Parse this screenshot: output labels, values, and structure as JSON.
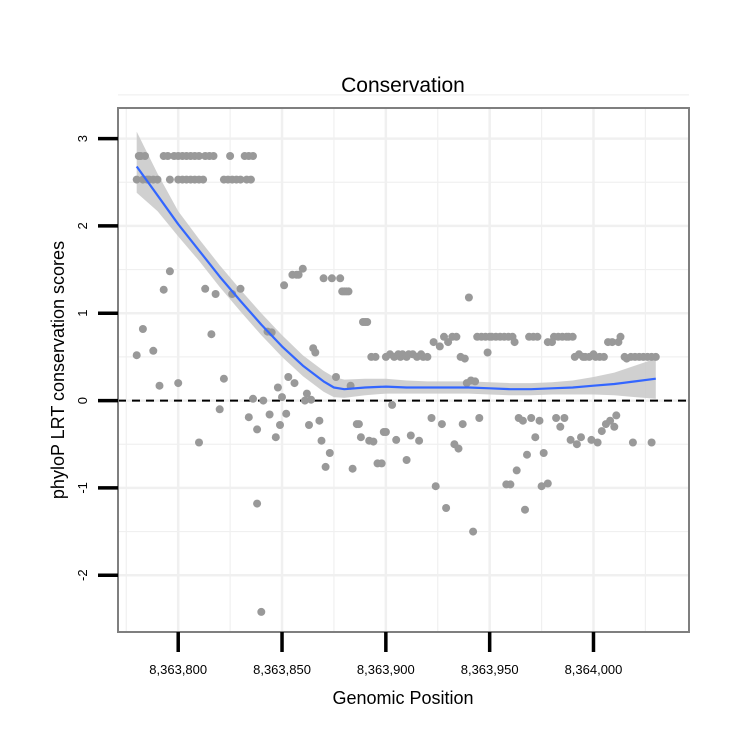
{
  "chart_data": {
    "type": "scatter",
    "title": "Conservation",
    "xlabel": "Genomic Position",
    "ylabel": "phyloP LRT conservation scores",
    "xlim": [
      8363771,
      8364046
    ],
    "ylim": [
      -2.65,
      3.35
    ],
    "x_ticks": [
      {
        "value": 8363800,
        "label": "8,363,800"
      },
      {
        "value": 8363850,
        "label": "8,363,850"
      },
      {
        "value": 8363900,
        "label": "8,363,900"
      },
      {
        "value": 8363950,
        "label": "8,363,950"
      },
      {
        "value": 8364000,
        "label": "8,364,000"
      }
    ],
    "y_ticks": [
      {
        "value": 3,
        "label": "3"
      },
      {
        "value": 2,
        "label": "2"
      },
      {
        "value": 1,
        "label": "1"
      },
      {
        "value": 0,
        "label": "0"
      },
      {
        "value": -1,
        "label": "-1"
      },
      {
        "value": -2,
        "label": "-2"
      }
    ],
    "reference_line": {
      "y": 0,
      "style": "dashed"
    },
    "grid": true,
    "colors": {
      "points": "#999999",
      "smooth": "#3366ff",
      "ribbon": "#c8c8c8",
      "panel_border": "#7f7f7f",
      "grid": "#f0f0f0"
    },
    "smooth": {
      "x": [
        8363780,
        8363790,
        8363800,
        8363810,
        8363820,
        8363830,
        8363840,
        8363850,
        8363860,
        8363870,
        8363875,
        8363880,
        8363890,
        8363900,
        8363910,
        8363920,
        8363930,
        8363940,
        8363950,
        8363960,
        8363970,
        8363980,
        8363990,
        8364000,
        8364010,
        8364020,
        8364030
      ],
      "y": [
        2.68,
        2.35,
        2.02,
        1.72,
        1.42,
        1.14,
        0.87,
        0.62,
        0.4,
        0.22,
        0.15,
        0.13,
        0.15,
        0.16,
        0.15,
        0.15,
        0.15,
        0.15,
        0.14,
        0.13,
        0.13,
        0.14,
        0.15,
        0.17,
        0.19,
        0.22,
        0.25
      ],
      "lower": [
        2.38,
        2.17,
        1.88,
        1.6,
        1.3,
        1.02,
        0.75,
        0.5,
        0.28,
        0.1,
        0.04,
        0.03,
        0.06,
        0.08,
        0.08,
        0.08,
        0.08,
        0.08,
        0.07,
        0.06,
        0.06,
        0.07,
        0.07,
        0.07,
        0.06,
        0.04,
        0.02
      ],
      "upper": [
        3.08,
        2.6,
        2.17,
        1.85,
        1.55,
        1.27,
        1.0,
        0.75,
        0.52,
        0.34,
        0.27,
        0.24,
        0.25,
        0.25,
        0.23,
        0.22,
        0.22,
        0.22,
        0.21,
        0.2,
        0.2,
        0.21,
        0.23,
        0.27,
        0.32,
        0.4,
        0.48
      ]
    },
    "points": [
      [
        8363780,
        2.53
      ],
      [
        8363781,
        2.8
      ],
      [
        8363782,
        2.8
      ],
      [
        8363783,
        2.53
      ],
      [
        8363784,
        2.8
      ],
      [
        8363785,
        2.53
      ],
      [
        8363786,
        2.53
      ],
      [
        8363788,
        2.53
      ],
      [
        8363790,
        2.53
      ],
      [
        8363793,
        2.8
      ],
      [
        8363795,
        2.8
      ],
      [
        8363796,
        2.53
      ],
      [
        8363798,
        2.8
      ],
      [
        8363800,
        2.8
      ],
      [
        8363800,
        2.53
      ],
      [
        8363802,
        2.8
      ],
      [
        8363802,
        2.53
      ],
      [
        8363804,
        2.8
      ],
      [
        8363804,
        2.53
      ],
      [
        8363806,
        2.8
      ],
      [
        8363806,
        2.53
      ],
      [
        8363808,
        2.8
      ],
      [
        8363808,
        2.53
      ],
      [
        8363810,
        2.8
      ],
      [
        8363810,
        2.53
      ],
      [
        8363812,
        2.53
      ],
      [
        8363813,
        2.8
      ],
      [
        8363815,
        2.8
      ],
      [
        8363817,
        2.8
      ],
      [
        8363822,
        2.53
      ],
      [
        8363824,
        2.53
      ],
      [
        8363825,
        2.8
      ],
      [
        8363826,
        2.53
      ],
      [
        8363828,
        2.53
      ],
      [
        8363830,
        2.53
      ],
      [
        8363832,
        2.8
      ],
      [
        8363833,
        2.53
      ],
      [
        8363834,
        2.8
      ],
      [
        8363835,
        2.53
      ],
      [
        8363836,
        2.8
      ],
      [
        8363780,
        0.52
      ],
      [
        8363783,
        0.82
      ],
      [
        8363788,
        0.57
      ],
      [
        8363791,
        0.17
      ],
      [
        8363793,
        1.27
      ],
      [
        8363796,
        1.48
      ],
      [
        8363800,
        0.2
      ],
      [
        8363810,
        -0.48
      ],
      [
        8363813,
        1.28
      ],
      [
        8363816,
        0.76
      ],
      [
        8363818,
        1.22
      ],
      [
        8363820,
        -0.1
      ],
      [
        8363822,
        0.25
      ],
      [
        8363826,
        1.22
      ],
      [
        8363830,
        1.28
      ],
      [
        8363834,
        -0.19
      ],
      [
        8363836,
        0.02
      ],
      [
        8363838,
        -0.33
      ],
      [
        8363838,
        -1.18
      ],
      [
        8363840,
        -2.42
      ],
      [
        8363841,
        0.0
      ],
      [
        8363843,
        0.79
      ],
      [
        8363844,
        -0.16
      ],
      [
        8363845,
        0.78
      ],
      [
        8363847,
        -0.42
      ],
      [
        8363848,
        0.15
      ],
      [
        8363849,
        -0.28
      ],
      [
        8363850,
        0.04
      ],
      [
        8363851,
        1.32
      ],
      [
        8363852,
        -0.15
      ],
      [
        8363853,
        0.27
      ],
      [
        8363855,
        1.44
      ],
      [
        8363856,
        0.2
      ],
      [
        8363857,
        1.44
      ],
      [
        8363858,
        1.44
      ],
      [
        8363860,
        1.51
      ],
      [
        8363861,
        0.0
      ],
      [
        8363862,
        0.08
      ],
      [
        8363863,
        -0.28
      ],
      [
        8363864,
        0.01
      ],
      [
        8363865,
        0.6
      ],
      [
        8363866,
        0.55
      ],
      [
        8363868,
        -0.23
      ],
      [
        8363869,
        -0.46
      ],
      [
        8363870,
        1.4
      ],
      [
        8363871,
        -0.76
      ],
      [
        8363873,
        -0.6
      ],
      [
        8363874,
        1.4
      ],
      [
        8363876,
        0.27
      ],
      [
        8363878,
        1.4
      ],
      [
        8363879,
        1.25
      ],
      [
        8363880,
        1.25
      ],
      [
        8363881,
        1.25
      ],
      [
        8363882,
        1.25
      ],
      [
        8363883,
        0.17
      ],
      [
        8363884,
        -0.78
      ],
      [
        8363886,
        -0.27
      ],
      [
        8363887,
        -0.27
      ],
      [
        8363888,
        -0.42
      ],
      [
        8363889,
        0.9
      ],
      [
        8363890,
        0.9
      ],
      [
        8363891,
        0.9
      ],
      [
        8363892,
        -0.46
      ],
      [
        8363893,
        0.5
      ],
      [
        8363894,
        -0.47
      ],
      [
        8363895,
        0.5
      ],
      [
        8363896,
        -0.72
      ],
      [
        8363898,
        -0.72
      ],
      [
        8363899,
        -0.36
      ],
      [
        8363900,
        0.5
      ],
      [
        8363900,
        -0.36
      ],
      [
        8363902,
        0.53
      ],
      [
        8363903,
        -0.05
      ],
      [
        8363904,
        0.5
      ],
      [
        8363905,
        -0.45
      ],
      [
        8363906,
        0.53
      ],
      [
        8363907,
        0.5
      ],
      [
        8363908,
        0.53
      ],
      [
        8363910,
        0.5
      ],
      [
        8363910,
        -0.68
      ],
      [
        8363911,
        0.53
      ],
      [
        8363912,
        -0.4
      ],
      [
        8363913,
        0.53
      ],
      [
        8363915,
        0.5
      ],
      [
        8363916,
        -0.46
      ],
      [
        8363917,
        0.53
      ],
      [
        8363918,
        0.5
      ],
      [
        8363920,
        0.5
      ],
      [
        8363922,
        -0.2
      ],
      [
        8363923,
        0.67
      ],
      [
        8363924,
        -0.98
      ],
      [
        8363926,
        0.62
      ],
      [
        8363927,
        -0.27
      ],
      [
        8363928,
        0.73
      ],
      [
        8363929,
        -1.23
      ],
      [
        8363930,
        0.67
      ],
      [
        8363932,
        0.73
      ],
      [
        8363933,
        -0.5
      ],
      [
        8363934,
        0.73
      ],
      [
        8363935,
        -0.55
      ],
      [
        8363936,
        0.5
      ],
      [
        8363937,
        -0.27
      ],
      [
        8363938,
        0.48
      ],
      [
        8363939,
        0.2
      ],
      [
        8363940,
        1.18
      ],
      [
        8363941,
        0.23
      ],
      [
        8363942,
        -1.5
      ],
      [
        8363943,
        0.22
      ],
      [
        8363944,
        0.73
      ],
      [
        8363945,
        -0.2
      ],
      [
        8363946,
        0.73
      ],
      [
        8363948,
        0.73
      ],
      [
        8363949,
        0.55
      ],
      [
        8363950,
        0.73
      ],
      [
        8363951,
        0.73
      ],
      [
        8363953,
        0.73
      ],
      [
        8363955,
        0.73
      ],
      [
        8363957,
        0.73
      ],
      [
        8363958,
        -0.96
      ],
      [
        8363959,
        0.73
      ],
      [
        8363960,
        -0.96
      ],
      [
        8363961,
        0.73
      ],
      [
        8363962,
        0.67
      ],
      [
        8363963,
        -0.8
      ],
      [
        8363964,
        -0.2
      ],
      [
        8363966,
        -0.23
      ],
      [
        8363967,
        -1.25
      ],
      [
        8363968,
        -0.62
      ],
      [
        8363969,
        0.73
      ],
      [
        8363970,
        -0.2
      ],
      [
        8363971,
        0.73
      ],
      [
        8363972,
        -0.42
      ],
      [
        8363973,
        0.73
      ],
      [
        8363974,
        -0.23
      ],
      [
        8363975,
        -0.98
      ],
      [
        8363976,
        -0.6
      ],
      [
        8363978,
        0.67
      ],
      [
        8363978,
        -0.95
      ],
      [
        8363980,
        0.67
      ],
      [
        8363981,
        0.73
      ],
      [
        8363982,
        -0.2
      ],
      [
        8363983,
        0.73
      ],
      [
        8363984,
        -0.3
      ],
      [
        8363985,
        0.73
      ],
      [
        8363986,
        -0.2
      ],
      [
        8363987,
        0.73
      ],
      [
        8363988,
        0.73
      ],
      [
        8363989,
        -0.45
      ],
      [
        8363990,
        0.73
      ],
      [
        8363991,
        0.5
      ],
      [
        8363992,
        -0.5
      ],
      [
        8363993,
        0.53
      ],
      [
        8363994,
        -0.42
      ],
      [
        8363995,
        0.5
      ],
      [
        8363996,
        0.5
      ],
      [
        8363998,
        0.5
      ],
      [
        8363999,
        -0.45
      ],
      [
        8364000,
        0.53
      ],
      [
        8364001,
        0.5
      ],
      [
        8364002,
        -0.48
      ],
      [
        8364003,
        0.5
      ],
      [
        8364004,
        -0.35
      ],
      [
        8364005,
        0.5
      ],
      [
        8364006,
        -0.27
      ],
      [
        8364007,
        0.67
      ],
      [
        8364008,
        -0.23
      ],
      [
        8364009,
        0.67
      ],
      [
        8364010,
        -0.3
      ],
      [
        8364011,
        -0.17
      ],
      [
        8364012,
        0.67
      ],
      [
        8364013,
        0.73
      ],
      [
        8364015,
        0.5
      ],
      [
        8364016,
        0.48
      ],
      [
        8364018,
        0.5
      ],
      [
        8364019,
        -0.48
      ],
      [
        8364020,
        0.5
      ],
      [
        8364022,
        0.5
      ],
      [
        8364024,
        0.5
      ],
      [
        8364026,
        0.5
      ],
      [
        8364028,
        0.5
      ],
      [
        8364028,
        -0.48
      ],
      [
        8364030,
        0.5
      ]
    ]
  }
}
